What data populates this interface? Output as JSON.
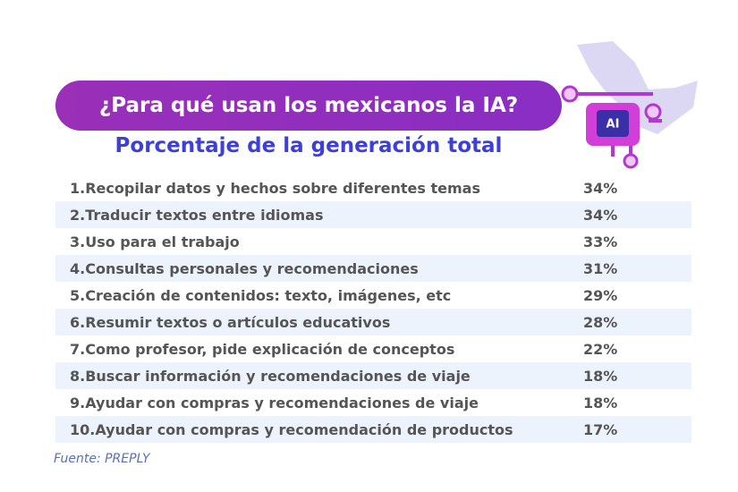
{
  "header": {
    "title": "¿Para qué usan los mexicanos la IA?",
    "subtitle": "Porcentaje de la generación total",
    "icon_label": "AI"
  },
  "table": {
    "rows": [
      [
        "1.Recopilar datos y hechos sobre diferentes temas",
        "34%"
      ],
      [
        "2.Traducir textos entre idiomas",
        "34%"
      ],
      [
        "3.Uso para el trabajo",
        "33%"
      ],
      [
        "4.Consultas personales y recomendaciones",
        "31%"
      ],
      [
        "5.Creación de contenidos: texto, imágenes, etc",
        "29%"
      ],
      [
        "6.Resumir textos o artículos educativos",
        "28%"
      ],
      [
        "7.Como profesor, pide explicación de conceptos",
        "22%"
      ],
      [
        "8.Buscar información y recomendaciones de viaje",
        "18%"
      ],
      [
        "9.Ayudar con compras y recomendaciones de viaje",
        "18%"
      ],
      [
        "10.Ayudar con compras y recomendación de productos",
        "17%"
      ]
    ]
  },
  "footer": {
    "source": "Fuente: PREPLY"
  }
}
